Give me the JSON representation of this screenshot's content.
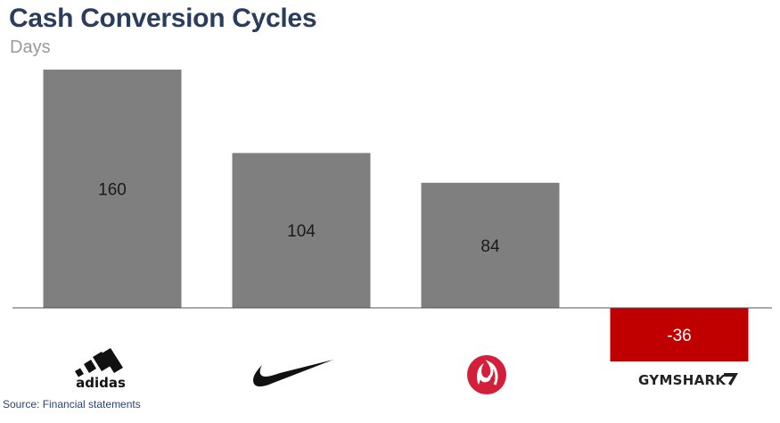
{
  "chart_data": {
    "type": "bar",
    "title": "Cash Conversion Cycles",
    "subtitle": "Days",
    "categories": [
      "adidas",
      "Nike",
      "lululemon",
      "GYMSHARK"
    ],
    "values": [
      160,
      104,
      84,
      -36
    ],
    "ylim": [
      -36,
      160
    ],
    "grid": false,
    "legend": "none",
    "colors": {
      "positive": "#7f7f7f",
      "negative": "#c00000",
      "axis": "#555555",
      "label_on_negative": "#ffffff",
      "label_on_positive": "#1a1a1a"
    }
  },
  "logos": {
    "adidas": {
      "text": "adidas",
      "icon": "adidas-three-bars-logo"
    },
    "nike": {
      "icon": "nike-swoosh-logo"
    },
    "lululemon": {
      "icon": "lululemon-logo",
      "color": "#d31f3a"
    },
    "gymshark": {
      "text": "GYMSHARK",
      "icon": "gymshark-logo"
    }
  },
  "source": "Source: Financial statements"
}
